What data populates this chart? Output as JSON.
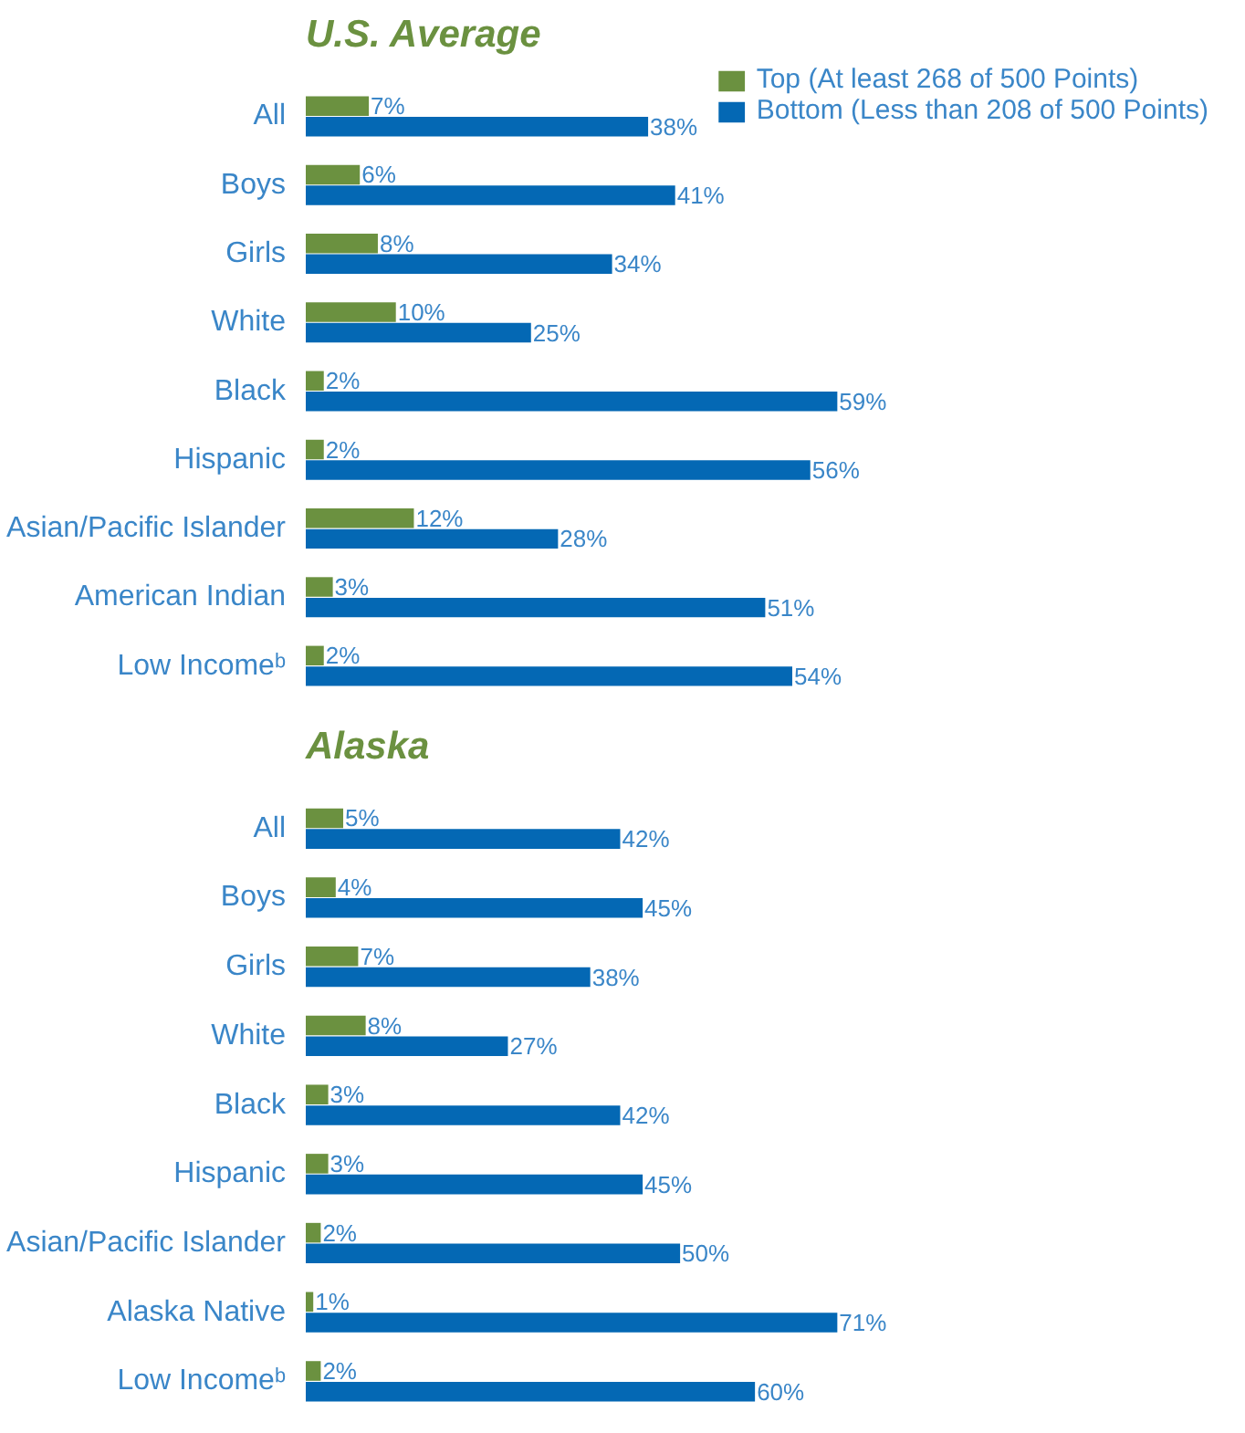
{
  "chart_data": [
    {
      "type": "bar",
      "orientation": "horizontal",
      "title": "U.S. Average",
      "categories": [
        "All",
        "Boys",
        "Girls",
        "White",
        "Black",
        "Hispanic",
        "Asian/Pacific Islander",
        "American Indian",
        "Low Incomeᵇ"
      ],
      "series": [
        {
          "name": "Top (At least 268 of 500 Points)",
          "color": "#6b9140",
          "values": [
            7,
            6,
            8,
            10,
            2,
            2,
            12,
            3,
            2
          ],
          "value_labels": [
            "7%",
            "6%",
            "8%",
            "10%",
            "2%",
            "2%",
            "12%",
            "3%",
            "2%"
          ]
        },
        {
          "name": "Bottom (Less than 208 of 500 Points)",
          "color": "#0468b4",
          "values": [
            38,
            41,
            34,
            25,
            59,
            56,
            28,
            51,
            54
          ],
          "value_labels": [
            "38%",
            "41%",
            "34%",
            "25%",
            "59%",
            "56%",
            "28%",
            "51%",
            "54%"
          ]
        }
      ],
      "legend": "top right",
      "grid": false,
      "tick_labels": "y"
    },
    {
      "type": "bar",
      "orientation": "horizontal",
      "title": "Alaska",
      "categories": [
        "All",
        "Boys",
        "Girls",
        "White",
        "Black",
        "Hispanic",
        "Asian/Pacific Islander",
        "Alaska Native",
        "Low Incomeᵇ"
      ],
      "series": [
        {
          "color": "#6b9140",
          "values": [
            5,
            4,
            7,
            8,
            3,
            3,
            2,
            1,
            2
          ],
          "value_labels": [
            "5%",
            "4%",
            "7%",
            "8%",
            "3%",
            "3%",
            "2%",
            "1%",
            "2%"
          ]
        },
        {
          "color": "#0468b4",
          "values": [
            42,
            45,
            38,
            27,
            42,
            45,
            50,
            71,
            60
          ],
          "value_labels": [
            "42%",
            "45%",
            "38%",
            "27%",
            "42%",
            "45%",
            "50%",
            "71%",
            "60%"
          ]
        }
      ],
      "grid": false,
      "tick_labels": "y"
    }
  ]
}
